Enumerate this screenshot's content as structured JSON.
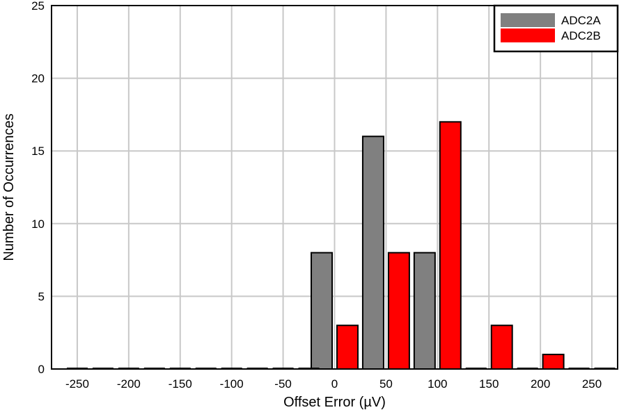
{
  "chart_data": {
    "type": "bar",
    "title": "",
    "xlabel": "Offset Error (µV)",
    "ylabel": "Number of Occurrences",
    "xlim": [
      -275,
      275
    ],
    "ylim": [
      0,
      25
    ],
    "x_ticks": [
      "-250",
      "-200",
      "-150",
      "-100",
      "-50",
      "0",
      "50",
      "100",
      "150",
      "200",
      "250"
    ],
    "x_tick_values": [
      -250,
      -200,
      -150,
      -100,
      -50,
      0,
      50,
      100,
      150,
      200,
      250
    ],
    "y_ticks": [
      "0",
      "5",
      "10",
      "15",
      "20",
      "25"
    ],
    "y_tick_values": [
      0,
      5,
      10,
      15,
      20,
      25
    ],
    "grid": true,
    "legend_position": "top-right",
    "categories": [
      -250,
      -225,
      -200,
      -175,
      -150,
      -125,
      -100,
      -75,
      -50,
      -25,
      0,
      25,
      50,
      75,
      100,
      125,
      150,
      175,
      200,
      225,
      250
    ],
    "series": [
      {
        "name": "ADC2A",
        "color": "#808080",
        "x": [
          -250,
          -200,
          -150,
          -100,
          -50,
          -12.5,
          37.5,
          87.5,
          137.5,
          187.5,
          237.5
        ],
        "values": [
          0,
          0,
          0,
          0,
          0,
          8,
          16,
          8,
          0,
          0,
          0
        ]
      },
      {
        "name": "ADC2B",
        "color": "#ff0000",
        "x": [
          -225,
          -175,
          -125,
          -75,
          -25,
          12.5,
          62.5,
          112.5,
          162.5,
          212.5,
          262.5
        ],
        "values": [
          0,
          0,
          0,
          0,
          0,
          3,
          8,
          17,
          3,
          1,
          0
        ]
      }
    ]
  }
}
